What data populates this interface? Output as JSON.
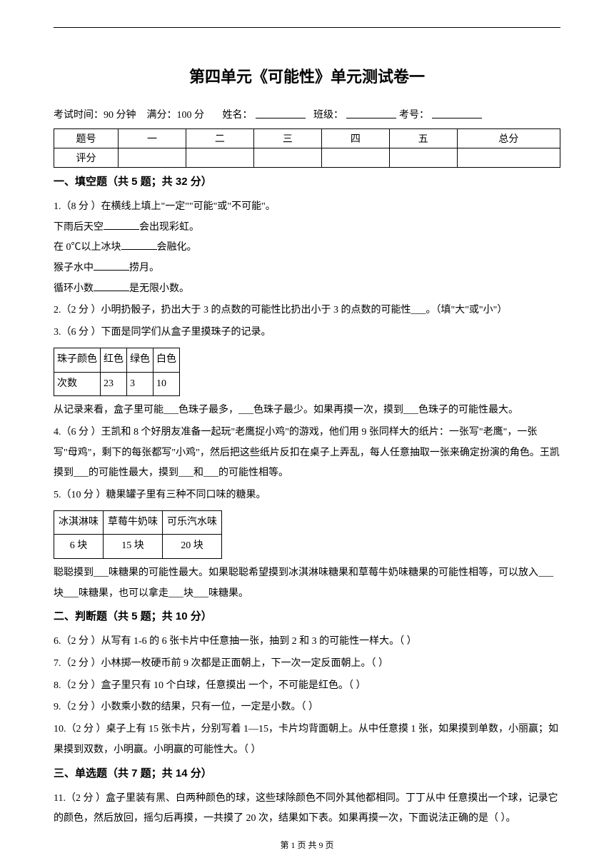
{
  "page": {
    "title": "第四单元《可能性》单元测试卷一",
    "exam_duration": "考试时间：90 分钟",
    "full_score": "满分：100 分",
    "name_label": "姓名：",
    "class_label": "班级：",
    "id_label": "考号：",
    "footer": "第 1 页 共 9 页"
  },
  "score_table": {
    "row_labels": [
      "题号",
      "评分"
    ],
    "columns": [
      "一",
      "二",
      "三",
      "四",
      "五",
      "总分"
    ]
  },
  "section1": {
    "title": "一、填空题（共 5 题；共 32 分）",
    "q1": {
      "header": "1.（8 分 ）在横线上填上\"一定\"\"可能\"或\"不可能\"。",
      "line1_a": "下雨后天空",
      "line1_b": "会出现彩虹。",
      "line2_a": "在 0℃以上冰块",
      "line2_b": "会融化。",
      "line3_a": "猴子水中",
      "line3_b": "捞月。",
      "line4_a": "循环小数",
      "line4_b": "是无限小数。"
    },
    "q2": "2.（2 分 ）小明扔骰子，扔出大于 3 的点数的可能性比扔出小于 3 的点数的可能性___。（填\"大\"或\"小\"）",
    "q3": {
      "header": "3.（6 分 ）下面是同学们从盒子里摸珠子的记录。",
      "table": {
        "headers": [
          "珠子颜色",
          "红色",
          "绿色",
          "白色"
        ],
        "row_label": "次数",
        "values": [
          "23",
          "3",
          "10"
        ]
      },
      "text": "从记录来看，盒子里可能___色珠子最多，___色珠子最少。如果再摸一次，摸到___色珠子的可能性最大。"
    },
    "q4": "4.（6 分 ）王凯和 8 个好朋友准备一起玩\"老鹰捉小鸡\"的游戏，他们用 9 张同样大的纸片：一张写\"老鹰\"，一张写\"母鸡\"，剩下的每张都写\"小鸡\"，然后把这些纸片反扣在桌子上弄乱，每人任意抽取一张来确定扮演的角色。王凯摸到___的可能性最大，摸到___和___的可能性相等。",
    "q5": {
      "header": "5.（10 分 ）糖果罐子里有三种不同口味的糖果。",
      "table": {
        "headers": [
          "冰淇淋味",
          "草莓牛奶味",
          "可乐汽水味"
        ],
        "values": [
          "6 块",
          "15 块",
          "20 块"
        ]
      },
      "text": "聪聪摸到___味糖果的可能性最大。如果聪聪希望摸到冰淇淋味糖果和草莓牛奶味糖果的可能性相等，可以放入___块___味糖果，也可以拿走___块___味糖果。"
    }
  },
  "section2": {
    "title": "二、判断题（共 5 题；共 10 分）",
    "q6": "6.（2 分 ）从写有 1-6 的 6 张卡片中任意抽一张，抽到 2 和 3 的可能性一样大。（    ）",
    "q7": "7.（2 分 ）小林掷一枚硬币前 9 次都是正面朝上，下一次一定反面朝上。（    ）",
    "q8": "8.（2 分 ）盒子里只有 10 个白球，任意摸出  一个，不可能是红色。（    ）",
    "q9": "9.（2 分 ）小数乘小数的结果，只有一位，一定是小数。（    ）",
    "q10": "10.（2 分 ）桌子上有 15 张卡片，分别写着 1—15，卡片均背面朝上。从中任意摸 1 张，如果摸到单数，小丽赢；如果摸到双数，小明赢。小明赢的可能性大。（    ）"
  },
  "section3": {
    "title": "三、单选题（共 7 题；共 14 分）",
    "q11": "11.（2 分 ）盒子里装有黑、白两种颜色的球，这些球除颜色不同外其他都相同。丁丁从中  任意摸出一个球，记录它的颜色，然后放回，摇匀后再摸，一共摸了 20 次，结果如下表。如果再摸一次，下面说法正确的是（    ）。"
  }
}
